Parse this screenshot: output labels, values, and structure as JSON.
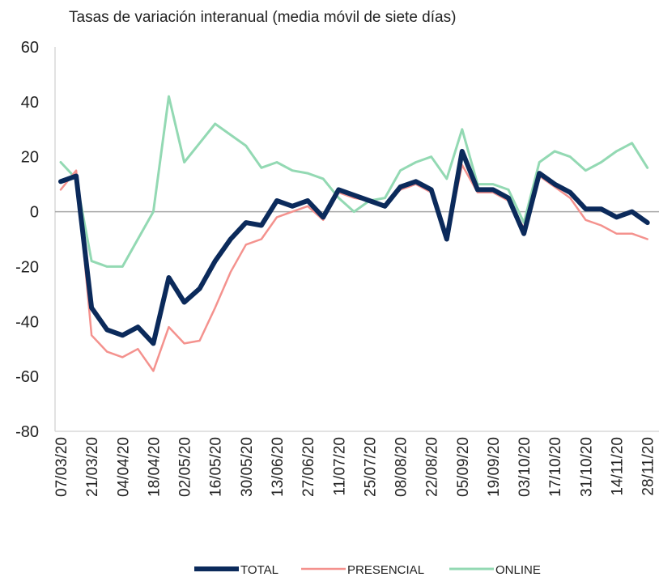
{
  "chart_data": {
    "type": "line",
    "title": "Tasas de variación interanual (media móvil de siete días)",
    "categories": [
      "07/03/20",
      null,
      "21/03/20",
      null,
      "04/04/20",
      null,
      "18/04/20",
      null,
      "02/05/20",
      null,
      "16/05/20",
      null,
      "30/05/20",
      null,
      "13/06/20",
      null,
      "27/06/20",
      null,
      "11/07/20",
      null,
      "25/07/20",
      null,
      "08/08/20",
      null,
      "22/08/20",
      null,
      "05/09/20",
      null,
      "19/09/20",
      null,
      "03/10/20",
      null,
      "17/10/20",
      null,
      "31/10/20",
      null,
      "14/11/20",
      null,
      "28/11/20"
    ],
    "series": [
      {
        "name": "TOTAL",
        "color": "#0b2a5b",
        "values": [
          11,
          13,
          -35,
          -43,
          -45,
          -42,
          -48,
          -24,
          -33,
          -28,
          -18,
          -10,
          -4,
          -5,
          4,
          2,
          4,
          -2,
          8,
          6,
          4,
          2,
          9,
          11,
          8,
          -10,
          22,
          8,
          8,
          5,
          -8,
          14,
          10,
          7,
          1,
          1,
          -2,
          0,
          -4
        ]
      },
      {
        "name": "PRESENCIAL",
        "color": "#f4928e",
        "values": [
          8,
          15,
          -45,
          -51,
          -53,
          -50,
          -58,
          -42,
          -48,
          -47,
          -35,
          -22,
          -12,
          -10,
          -2,
          0,
          2,
          -3,
          7,
          5,
          4,
          2,
          8,
          10,
          7,
          -10,
          17,
          7,
          7,
          4,
          -6,
          13,
          9,
          5,
          -3,
          -5,
          -8,
          -8,
          -10
        ]
      },
      {
        "name": "ONLINE",
        "color": "#93d9b3",
        "values": [
          18,
          12,
          -18,
          -20,
          -20,
          -10,
          0,
          42,
          18,
          25,
          32,
          28,
          24,
          16,
          18,
          15,
          14,
          12,
          5,
          0,
          4,
          5,
          15,
          18,
          20,
          12,
          30,
          10,
          10,
          8,
          -4,
          18,
          22,
          20,
          15,
          18,
          22,
          25,
          16
        ]
      }
    ],
    "ylim": [
      -80,
      60
    ],
    "yticks": [
      -80,
      -60,
      -40,
      -20,
      0,
      20,
      40,
      60
    ],
    "legend": "bottom"
  }
}
